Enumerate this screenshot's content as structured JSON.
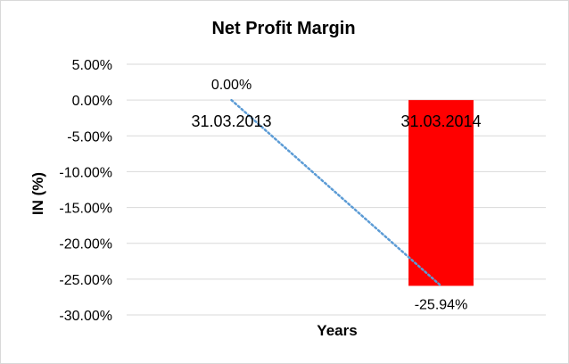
{
  "chart_data": {
    "type": "bar",
    "title": "Net Profit Margin",
    "xlabel": "Years",
    "ylabel": "IN (%)",
    "categories": [
      "31.03.2013",
      "31.03.2014"
    ],
    "values": [
      0.0,
      -25.94
    ],
    "data_labels": [
      "0.00%",
      "-25.94%"
    ],
    "ylim": [
      -30,
      5
    ],
    "yticks": [
      5,
      0,
      -5,
      -10,
      -15,
      -20,
      -25,
      -30
    ],
    "ytick_labels": [
      "5.00%",
      "0.00%",
      "-5.00%",
      "-10.00%",
      "-15.00%",
      "-20.00%",
      "-25.00%",
      "-30.00%"
    ],
    "grid": true,
    "legend": "none",
    "bar_color": "#ff0000",
    "trendline": {
      "style": "dotted",
      "color": "#5b9bd5"
    }
  }
}
